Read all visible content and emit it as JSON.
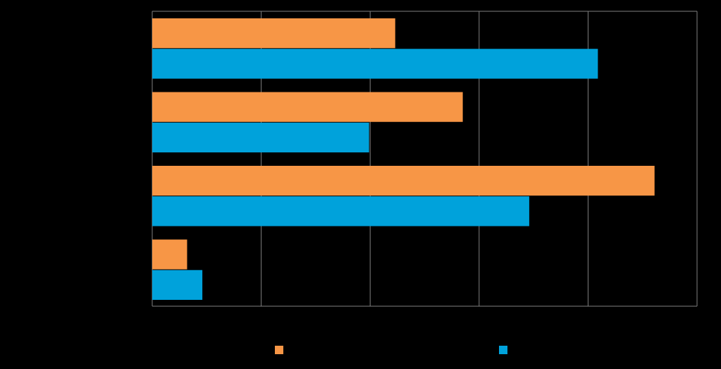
{
  "chart_data": {
    "type": "bar",
    "orientation": "horizontal",
    "categories": [
      null,
      null,
      null,
      null
    ],
    "series": [
      {
        "color": "#f79646",
        "values": [
          2.23,
          2.85,
          4.61,
          0.32
        ]
      },
      {
        "color": "#00a2db",
        "values": [
          4.09,
          1.99,
          3.46,
          0.46
        ]
      }
    ],
    "xlim": [
      0,
      5
    ],
    "xticks": [
      0,
      1,
      2,
      3,
      4,
      5
    ],
    "grid": true
  }
}
